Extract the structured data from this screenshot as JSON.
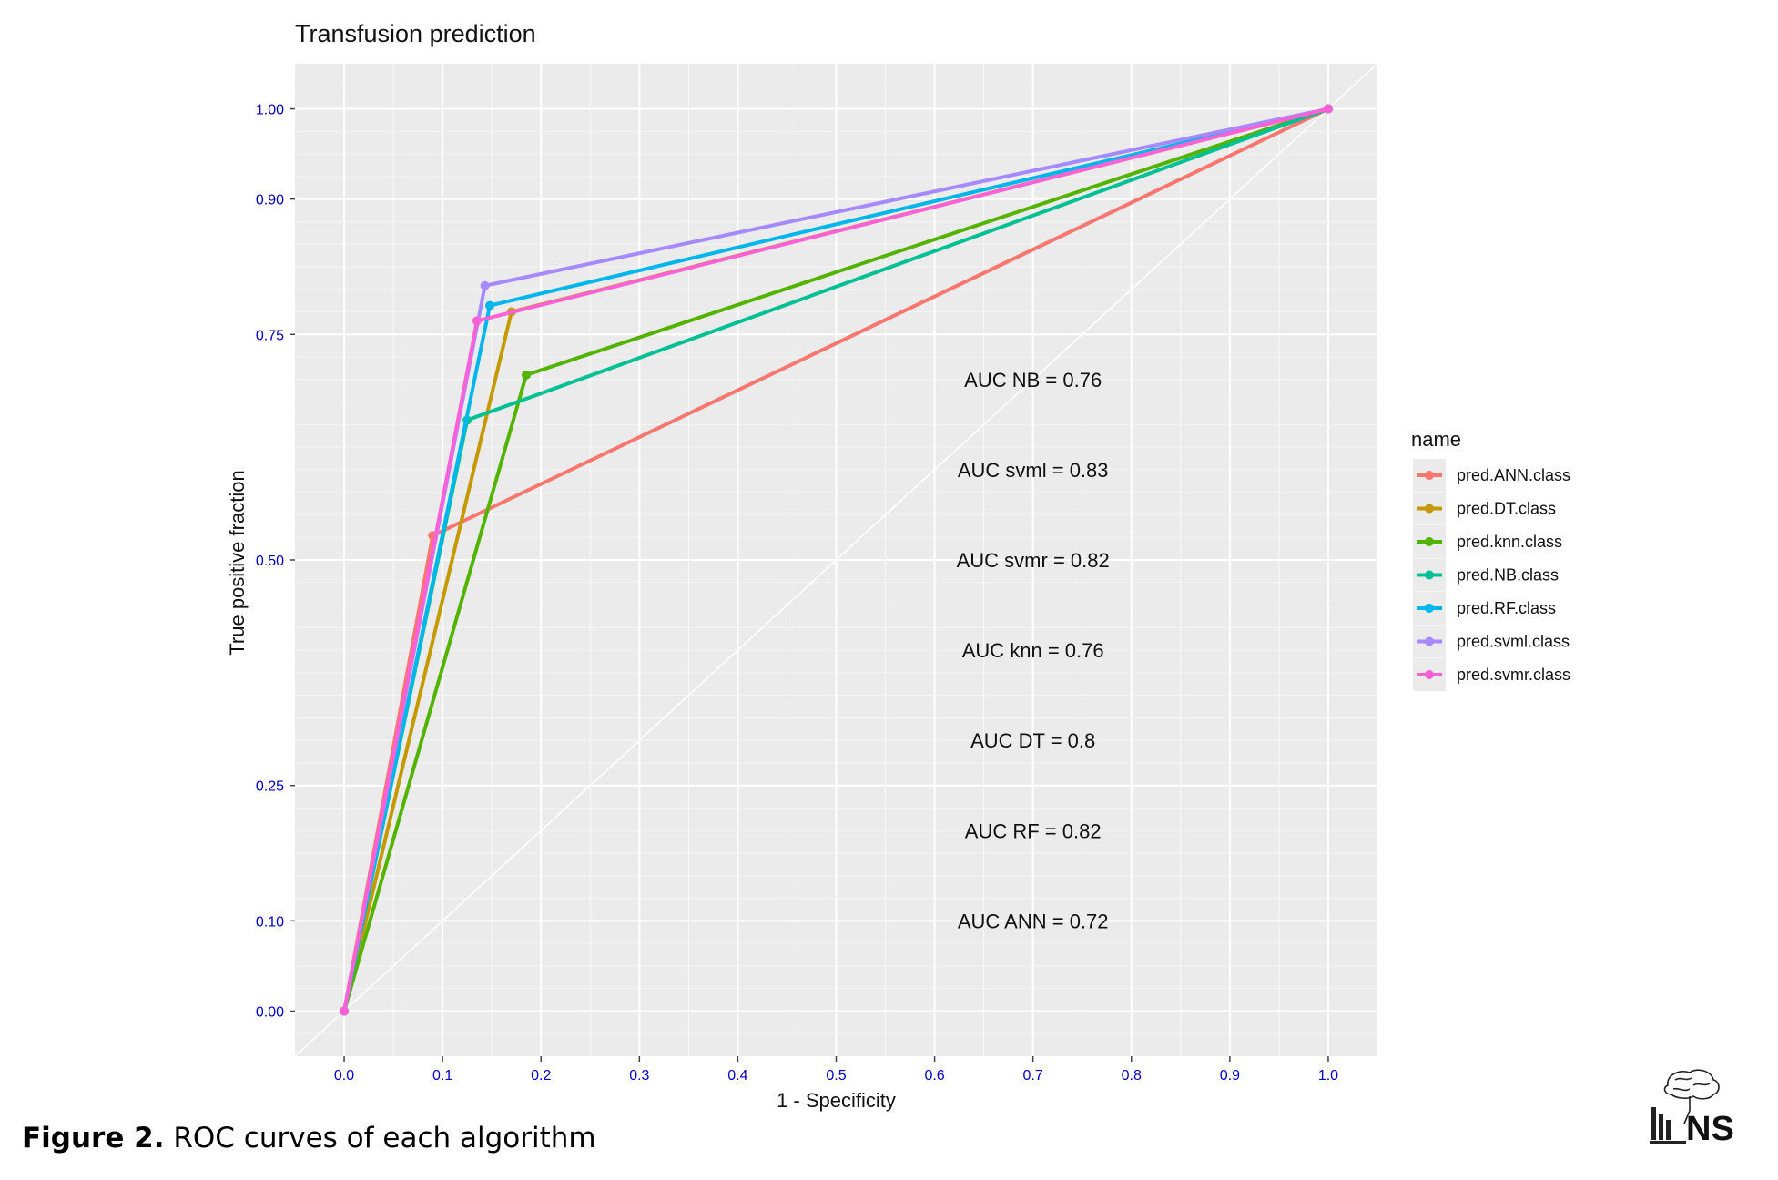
{
  "caption": {
    "label": "Figure 2.",
    "text": " ROC curves of each algorithm"
  },
  "logo": {
    "text": "NS"
  },
  "colors": {
    "panel_bg": "#EBEBEB",
    "grid": "#FFFFFF",
    "tick_label": "#0000CC",
    "text": "#111111"
  },
  "chart_data": {
    "type": "line",
    "title": "Transfusion prediction",
    "xlabel": "1 - Specificity",
    "ylabel": "True positive fraction",
    "xlim": [
      -0.05,
      1.05
    ],
    "ylim": [
      -0.05,
      1.05
    ],
    "x_ticks": [
      0.0,
      0.1,
      0.2,
      0.3,
      0.4,
      0.5,
      0.6,
      0.7,
      0.8,
      0.9,
      1.0
    ],
    "x_tick_labels": [
      "0.0",
      "0.1",
      "0.2",
      "0.3",
      "0.4",
      "0.5",
      "0.6",
      "0.7",
      "0.8",
      "0.9",
      "1.0"
    ],
    "y_ticks": [
      0.0,
      0.1,
      0.25,
      0.5,
      0.75,
      0.9,
      1.0
    ],
    "y_tick_labels": [
      "0.00",
      "0.10",
      "0.25",
      "0.50",
      "0.75",
      "0.90",
      "1.00"
    ],
    "grid": true,
    "diagonal_reference": true,
    "legend": {
      "title": "name",
      "position": "right"
    },
    "series": [
      {
        "name": "pred.ANN.class",
        "color": "#F8766D",
        "x": [
          0,
          0.09,
          1
        ],
        "y": [
          0,
          0.527,
          1
        ]
      },
      {
        "name": "pred.DT.class",
        "color": "#C49A00",
        "x": [
          0,
          0.17,
          1
        ],
        "y": [
          0,
          0.775,
          1
        ]
      },
      {
        "name": "pred.knn.class",
        "color": "#53B400",
        "x": [
          0,
          0.185,
          1
        ],
        "y": [
          0,
          0.705,
          1
        ]
      },
      {
        "name": "pred.NB.class",
        "color": "#00C094",
        "x": [
          0,
          0.125,
          1
        ],
        "y": [
          0,
          0.655,
          1
        ]
      },
      {
        "name": "pred.RF.class",
        "color": "#00B6EB",
        "x": [
          0,
          0.148,
          1
        ],
        "y": [
          0,
          0.782,
          1
        ]
      },
      {
        "name": "pred.svml.class",
        "color": "#A58AFF",
        "x": [
          0,
          0.143,
          1
        ],
        "y": [
          0,
          0.804,
          1
        ]
      },
      {
        "name": "pred.svmr.class",
        "color": "#FB61D7",
        "x": [
          0,
          0.135,
          1
        ],
        "y": [
          0,
          0.765,
          1
        ]
      }
    ],
    "annotations": [
      {
        "text": "AUC NB = 0.76",
        "x": 0.7,
        "y": 0.7
      },
      {
        "text": "AUC svml = 0.83",
        "x": 0.7,
        "y": 0.6
      },
      {
        "text": "AUC svmr = 0.82",
        "x": 0.7,
        "y": 0.5
      },
      {
        "text": "AUC knn = 0.76",
        "x": 0.7,
        "y": 0.4
      },
      {
        "text": "AUC DT = 0.8",
        "x": 0.7,
        "y": 0.3
      },
      {
        "text": "AUC RF = 0.82",
        "x": 0.7,
        "y": 0.2
      },
      {
        "text": "AUC ANN = 0.72",
        "x": 0.7,
        "y": 0.1
      }
    ]
  }
}
